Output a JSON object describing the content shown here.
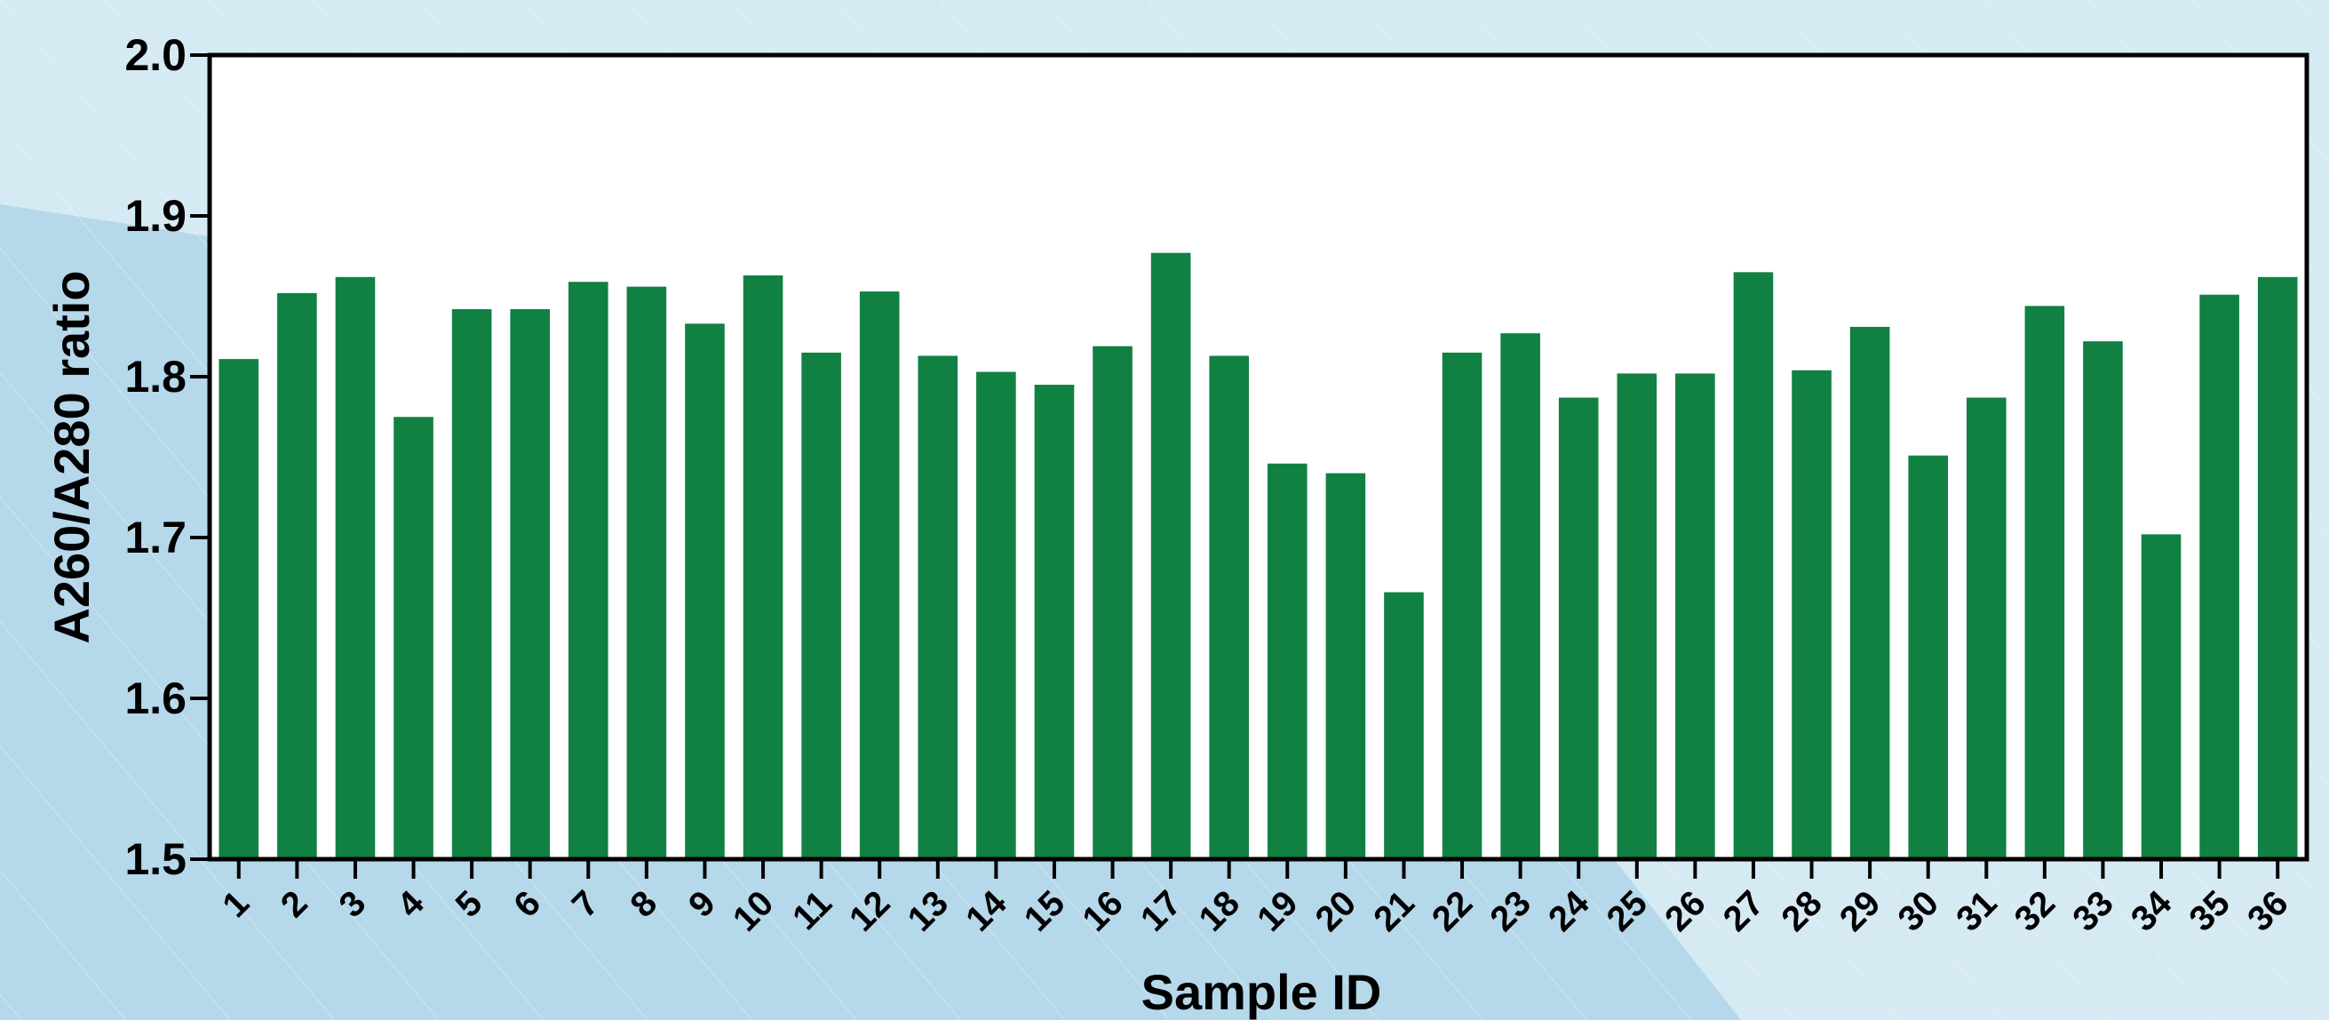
{
  "colors": {
    "bar": "#108142",
    "plot_background": "#ffffff",
    "page_background_light": "#d4e9f3",
    "page_background_mid": "#b6d9ea",
    "axis": "#000000"
  },
  "chart_data": {
    "type": "bar",
    "title": "",
    "xlabel": "Sample ID",
    "ylabel": "A260/A280 ratio",
    "ylim": [
      1.5,
      2.0
    ],
    "yticks": [
      "1.5",
      "1.6",
      "1.7",
      "1.8",
      "1.9",
      "2.0"
    ],
    "grid": false,
    "legend": "none",
    "categories": [
      "1",
      "2",
      "3",
      "4",
      "5",
      "6",
      "7",
      "8",
      "9",
      "10",
      "11",
      "12",
      "13",
      "14",
      "15",
      "16",
      "17",
      "18",
      "19",
      "20",
      "21",
      "22",
      "23",
      "24",
      "25",
      "26",
      "27",
      "28",
      "29",
      "30",
      "31",
      "32",
      "33",
      "34",
      "35",
      "36"
    ],
    "values": [
      1.811,
      1.852,
      1.862,
      1.775,
      1.842,
      1.842,
      1.859,
      1.856,
      1.833,
      1.863,
      1.815,
      1.853,
      1.813,
      1.803,
      1.795,
      1.819,
      1.877,
      1.813,
      1.746,
      1.74,
      1.666,
      1.815,
      1.827,
      1.787,
      1.802,
      1.802,
      1.865,
      1.804,
      1.831,
      1.751,
      1.787,
      1.844,
      1.822,
      1.702,
      1.851,
      1.862
    ]
  }
}
